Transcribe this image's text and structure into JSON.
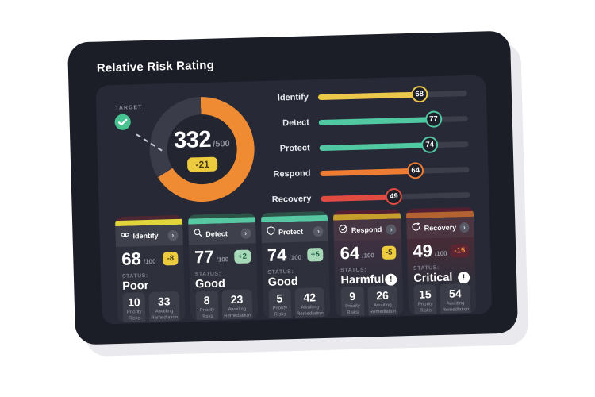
{
  "page": {
    "title": "Relative Risk Rating"
  },
  "donut": {
    "target_label": "TARGET",
    "score": "332",
    "max_label": "/500",
    "delta": "-21",
    "score_value": 332,
    "max_value": 500,
    "arc_color": "#ef8b33",
    "track_color": "#3a3d49",
    "target_check_color": "#45c28f"
  },
  "bars": [
    {
      "label": "Identify",
      "value": 68,
      "color": "#ecc84a"
    },
    {
      "label": "Detect",
      "value": 77,
      "color": "#50c8a2"
    },
    {
      "label": "Protect",
      "value": 74,
      "color": "#50c8a2"
    },
    {
      "label": "Respond",
      "value": 64,
      "color": "#ee7d33"
    },
    {
      "label": "Recovery",
      "value": 49,
      "color": "#e14b41"
    }
  ],
  "cards": [
    {
      "label": "Identify",
      "icon": "eye-icon",
      "score": "68",
      "max_label": "/100",
      "delta": "-8",
      "delta_bg": "#eccb3f",
      "delta_fg": "#43390f",
      "band_color": "#4c2630",
      "accent_color": "#e2d53c",
      "header_color": "#3e404b",
      "body_tint": "",
      "status_label": "STATUS:",
      "status": "Poor",
      "warning": false,
      "chevron": "›",
      "stats": [
        {
          "value": "10",
          "label": "Priority Risks"
        },
        {
          "value": "33",
          "label": "Awaiting Remediation"
        }
      ]
    },
    {
      "label": "Detect",
      "icon": "search-icon",
      "score": "77",
      "max_label": "/100",
      "delta": "+2",
      "delta_bg": "#a6d8b7",
      "delta_fg": "#1d5a3e",
      "band_color": "#2d5248",
      "accent_color": "#56c8a2",
      "header_color": "#3e404b",
      "body_tint": "",
      "status_label": "STATUS:",
      "status": "Good",
      "warning": false,
      "chevron": "›",
      "stats": [
        {
          "value": "8",
          "label": "Priority Risks"
        },
        {
          "value": "23",
          "label": "Awaiting Remediation"
        }
      ]
    },
    {
      "label": "Protect",
      "icon": "shield-icon",
      "score": "74",
      "max_label": "/100",
      "delta": "+5",
      "delta_bg": "#a6d8b7",
      "delta_fg": "#1d5a3e",
      "band_color": "#2d5248",
      "accent_color": "#56c8a2",
      "header_color": "#3e404b",
      "body_tint": "",
      "status_label": "STATUS:",
      "status": "Good",
      "warning": false,
      "chevron": "›",
      "stats": [
        {
          "value": "5",
          "label": "Priority Risks"
        },
        {
          "value": "42",
          "label": "Awaiting Remediation"
        }
      ]
    },
    {
      "label": "Respond",
      "icon": "check-circle-icon",
      "score": "64",
      "max_label": "/100",
      "delta": "-5",
      "delta_bg": "#eccb3f",
      "delta_fg": "#43390f",
      "band_color": "#542031",
      "accent_color": "#c79f2d",
      "header_color": "#463643",
      "body_tint": "linear-gradient(180deg,#3f3040 0%,#2e303b 55%)",
      "status_label": "STATUS:",
      "status": "Harmful",
      "warning": true,
      "warning_glyph": "!",
      "chevron": "›",
      "stats": [
        {
          "value": "9",
          "label": "Priority Risks"
        },
        {
          "value": "26",
          "label": "Awaiting Remediation"
        }
      ]
    },
    {
      "label": "Recovery",
      "icon": "refresh-icon",
      "score": "49",
      "max_label": "/100",
      "delta": "-15",
      "delta_bg": "#5d2531",
      "delta_fg": "#ee8a3a",
      "band_color": "#542031",
      "accent_color": "#b4622f",
      "header_color": "#4a3540",
      "body_tint": "linear-gradient(180deg,#472b36 0%,#2e303b 55%)",
      "status_label": "STATUS:",
      "status": "Critical",
      "warning": true,
      "warning_glyph": "!",
      "chevron": "›",
      "stats": [
        {
          "value": "15",
          "label": "Priority Risks"
        },
        {
          "value": "54",
          "label": "Awaiting Remediation"
        }
      ]
    }
  ],
  "chart_data": [
    {
      "type": "donut-gauge",
      "title": "Relative Risk Rating",
      "value": 332,
      "max": 500,
      "delta": -21,
      "arc_color": "#ef8b33",
      "annotations": [
        "TARGET"
      ]
    },
    {
      "type": "bar",
      "orientation": "horizontal",
      "categories": [
        "Identify",
        "Detect",
        "Protect",
        "Respond",
        "Recovery"
      ],
      "values": [
        68,
        77,
        74,
        64,
        49
      ],
      "xlim": [
        0,
        100
      ],
      "colors": [
        "#ecc84a",
        "#50c8a2",
        "#50c8a2",
        "#ee7d33",
        "#e14b41"
      ],
      "grid": false,
      "legend": false
    }
  ]
}
